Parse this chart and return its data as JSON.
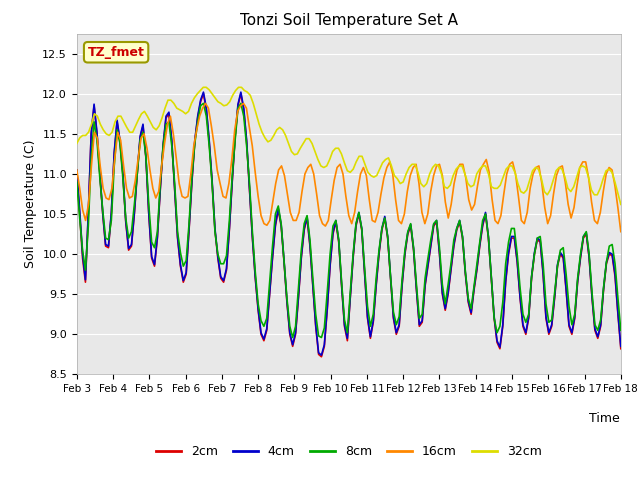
{
  "title": "Tonzi Soil Temperature Set A",
  "xlabel": "Time",
  "ylabel": "Soil Temperature (C)",
  "ylim": [
    8.5,
    12.75
  ],
  "background_color": "#ffffff",
  "plot_bg_color": "#e8e8e8",
  "annotation_text": "TZ_fmet",
  "annotation_color": "#cc0000",
  "annotation_bg": "#ffffcc",
  "annotation_border": "#999900",
  "legend_labels": [
    "2cm",
    "4cm",
    "8cm",
    "16cm",
    "32cm"
  ],
  "line_colors": [
    "#dd0000",
    "#0000cc",
    "#00aa00",
    "#ff8800",
    "#dddd00"
  ],
  "line_widths": [
    1.2,
    1.2,
    1.2,
    1.2,
    1.2
  ],
  "xtick_labels": [
    "Feb 3",
    "Feb 4",
    "Feb 5",
    "Feb 6",
    "Feb 7",
    "Feb 8",
    "Feb 9",
    "Feb 10",
    "Feb 11",
    "Feb 12",
    "Feb 13",
    "Feb 14",
    "Feb 15",
    "Feb 16",
    "Feb 17",
    "Feb 18"
  ],
  "yticks": [
    8.5,
    9.0,
    9.5,
    10.0,
    10.5,
    11.0,
    11.5,
    12.0,
    12.5
  ],
  "title_fontsize": 11,
  "tick_fontsize": 8,
  "label_fontsize": 9,
  "legend_fontsize": 9,
  "total_days": 15,
  "series_2cm": [
    11.0,
    10.5,
    9.95,
    9.65,
    10.5,
    11.5,
    11.85,
    11.5,
    11.0,
    10.5,
    10.1,
    10.08,
    10.5,
    11.25,
    11.65,
    11.4,
    11.0,
    10.4,
    10.05,
    10.1,
    10.5,
    11.0,
    11.45,
    11.6,
    11.2,
    10.5,
    9.95,
    9.85,
    10.2,
    10.8,
    11.35,
    11.7,
    11.75,
    11.4,
    10.8,
    10.2,
    9.85,
    9.65,
    9.75,
    10.3,
    10.9,
    11.4,
    11.7,
    11.9,
    12.0,
    11.8,
    11.4,
    10.9,
    10.3,
    9.95,
    9.7,
    9.65,
    9.8,
    10.3,
    10.9,
    11.45,
    11.85,
    12.0,
    11.8,
    11.4,
    10.8,
    10.2,
    9.7,
    9.3,
    9.0,
    8.92,
    9.05,
    9.5,
    9.95,
    10.35,
    10.55,
    10.35,
    9.9,
    9.4,
    9.0,
    8.85,
    9.0,
    9.45,
    9.95,
    10.3,
    10.45,
    10.1,
    9.6,
    9.1,
    8.75,
    8.72,
    8.85,
    9.3,
    9.85,
    10.25,
    10.4,
    10.15,
    9.6,
    9.1,
    8.92,
    9.45,
    9.95,
    10.35,
    10.5,
    10.3,
    9.75,
    9.2,
    8.95,
    9.15,
    9.6,
    10.0,
    10.3,
    10.45,
    10.2,
    9.7,
    9.2,
    9.0,
    9.1,
    9.6,
    10.0,
    10.25,
    10.35,
    10.05,
    9.55,
    9.1,
    9.15,
    9.6,
    9.85,
    10.1,
    10.35,
    10.4,
    10.0,
    9.5,
    9.3,
    9.5,
    9.8,
    10.1,
    10.3,
    10.4,
    10.2,
    9.75,
    9.4,
    9.25,
    9.55,
    9.8,
    10.1,
    10.35,
    10.5,
    10.2,
    9.7,
    9.2,
    8.9,
    8.82,
    9.1,
    9.65,
    10.0,
    10.2,
    10.2,
    9.9,
    9.45,
    9.1,
    9.0,
    9.2,
    9.7,
    10.0,
    10.18,
    10.15,
    9.75,
    9.2,
    9.0,
    9.1,
    9.45,
    9.85,
    10.0,
    9.95,
    9.55,
    9.1,
    9.0,
    9.2,
    9.65,
    9.95,
    10.2,
    10.25,
    9.95,
    9.45,
    9.05,
    8.95,
    9.1,
    9.55,
    9.88,
    10.0,
    9.98,
    9.72,
    9.25,
    8.82
  ],
  "series_4cm": [
    11.05,
    10.55,
    10.0,
    9.68,
    10.52,
    11.5,
    11.87,
    11.52,
    11.02,
    10.52,
    10.12,
    10.1,
    10.52,
    11.27,
    11.67,
    11.42,
    11.02,
    10.42,
    10.07,
    10.12,
    10.52,
    11.02,
    11.47,
    11.62,
    11.22,
    10.52,
    9.97,
    9.87,
    10.22,
    10.82,
    11.37,
    11.72,
    11.77,
    11.42,
    10.82,
    10.22,
    9.87,
    9.67,
    9.77,
    10.32,
    10.92,
    11.42,
    11.72,
    11.92,
    12.02,
    11.82,
    11.42,
    10.92,
    10.32,
    9.97,
    9.72,
    9.67,
    9.82,
    10.32,
    10.92,
    11.47,
    11.87,
    12.02,
    11.82,
    11.42,
    10.82,
    10.22,
    9.72,
    9.32,
    9.02,
    8.94,
    9.07,
    9.52,
    9.97,
    10.37,
    10.57,
    10.37,
    9.92,
    9.42,
    9.02,
    8.87,
    9.02,
    9.47,
    9.97,
    10.32,
    10.47,
    10.12,
    9.62,
    9.12,
    8.77,
    8.74,
    8.87,
    9.32,
    9.87,
    10.27,
    10.42,
    10.17,
    9.62,
    9.12,
    8.95,
    9.47,
    9.97,
    10.37,
    10.52,
    10.32,
    9.77,
    9.22,
    8.97,
    9.17,
    9.62,
    10.02,
    10.32,
    10.47,
    10.22,
    9.72,
    9.22,
    9.02,
    9.12,
    9.62,
    10.02,
    10.27,
    10.37,
    10.07,
    9.57,
    9.12,
    9.17,
    9.62,
    9.87,
    10.12,
    10.37,
    10.42,
    10.02,
    9.52,
    9.32,
    9.52,
    9.82,
    10.12,
    10.32,
    10.42,
    10.22,
    9.77,
    9.42,
    9.27,
    9.57,
    9.82,
    10.12,
    10.37,
    10.52,
    10.22,
    9.72,
    9.22,
    8.92,
    8.84,
    9.12,
    9.67,
    10.02,
    10.22,
    10.22,
    9.92,
    9.47,
    9.12,
    9.02,
    9.22,
    9.72,
    10.02,
    10.2,
    10.17,
    9.77,
    9.22,
    9.02,
    9.12,
    9.47,
    9.87,
    10.02,
    9.97,
    9.57,
    9.12,
    9.02,
    9.22,
    9.67,
    9.97,
    10.22,
    10.27,
    9.97,
    9.47,
    9.07,
    8.97,
    9.12,
    9.57,
    9.9,
    10.02,
    10.0,
    9.75,
    9.27,
    8.85
  ],
  "series_8cm": [
    10.9,
    10.45,
    10.05,
    9.8,
    10.35,
    11.2,
    11.65,
    11.42,
    10.95,
    10.55,
    10.2,
    10.18,
    10.42,
    11.1,
    11.55,
    11.38,
    10.95,
    10.45,
    10.2,
    10.28,
    10.62,
    11.0,
    11.42,
    11.52,
    11.22,
    10.62,
    10.15,
    10.08,
    10.28,
    10.88,
    11.35,
    11.62,
    11.65,
    11.35,
    10.88,
    10.28,
    10.02,
    9.85,
    9.92,
    10.38,
    10.98,
    11.38,
    11.65,
    11.85,
    11.88,
    11.72,
    11.35,
    10.88,
    10.28,
    10.0,
    9.88,
    9.88,
    9.98,
    10.42,
    10.98,
    11.42,
    11.82,
    11.88,
    11.72,
    11.35,
    10.88,
    10.28,
    9.78,
    9.38,
    9.17,
    9.1,
    9.2,
    9.65,
    10.1,
    10.5,
    10.6,
    10.38,
    9.92,
    9.45,
    9.1,
    8.96,
    9.1,
    9.58,
    10.05,
    10.38,
    10.48,
    10.18,
    9.7,
    9.25,
    8.98,
    8.96,
    9.08,
    9.52,
    10.0,
    10.35,
    10.42,
    10.18,
    9.65,
    9.18,
    9.02,
    9.52,
    10.0,
    10.38,
    10.52,
    10.32,
    9.82,
    9.35,
    9.1,
    9.25,
    9.7,
    10.05,
    10.32,
    10.45,
    10.22,
    9.72,
    9.28,
    9.12,
    9.22,
    9.68,
    10.05,
    10.28,
    10.38,
    10.08,
    9.62,
    9.2,
    9.25,
    9.7,
    9.95,
    10.18,
    10.38,
    10.42,
    10.08,
    9.62,
    9.38,
    9.62,
    9.88,
    10.18,
    10.32,
    10.42,
    10.22,
    9.78,
    9.45,
    9.32,
    9.6,
    9.88,
    10.15,
    10.42,
    10.5,
    10.22,
    9.72,
    9.2,
    9.02,
    9.1,
    9.4,
    9.88,
    10.15,
    10.32,
    10.32,
    10.0,
    9.58,
    9.25,
    9.15,
    9.25,
    9.72,
    10.0,
    10.2,
    10.22,
    9.88,
    9.38,
    9.15,
    9.18,
    9.52,
    9.85,
    10.05,
    10.08,
    9.75,
    9.35,
    9.12,
    9.25,
    9.7,
    10.0,
    10.22,
    10.28,
    10.0,
    9.52,
    9.12,
    9.05,
    9.18,
    9.58,
    9.9,
    10.1,
    10.12,
    9.88,
    9.45,
    9.05
  ],
  "series_16cm": [
    11.05,
    10.82,
    10.55,
    10.42,
    10.62,
    11.1,
    11.52,
    11.45,
    11.1,
    10.82,
    10.7,
    10.68,
    10.82,
    11.2,
    11.52,
    11.42,
    11.1,
    10.82,
    10.7,
    10.72,
    10.92,
    11.2,
    11.45,
    11.5,
    11.32,
    11.05,
    10.82,
    10.7,
    10.78,
    11.1,
    11.38,
    11.62,
    11.72,
    11.5,
    11.2,
    10.88,
    10.72,
    10.7,
    10.72,
    11.0,
    11.35,
    11.55,
    11.72,
    11.82,
    11.88,
    11.82,
    11.6,
    11.35,
    11.05,
    10.88,
    10.72,
    10.7,
    10.88,
    11.18,
    11.55,
    11.78,
    11.85,
    11.88,
    11.82,
    11.58,
    11.35,
    11.02,
    10.72,
    10.48,
    10.38,
    10.36,
    10.42,
    10.65,
    10.88,
    11.05,
    11.1,
    10.98,
    10.75,
    10.52,
    10.42,
    10.42,
    10.52,
    10.78,
    11.0,
    11.08,
    11.12,
    11.0,
    10.75,
    10.48,
    10.38,
    10.35,
    10.42,
    10.68,
    10.92,
    11.08,
    11.12,
    11.0,
    10.72,
    10.48,
    10.38,
    10.52,
    10.78,
    11.0,
    11.08,
    10.98,
    10.68,
    10.42,
    10.4,
    10.52,
    10.75,
    10.95,
    11.08,
    11.15,
    11.0,
    10.68,
    10.42,
    10.38,
    10.5,
    10.78,
    10.98,
    11.08,
    11.12,
    10.88,
    10.52,
    10.38,
    10.5,
    10.78,
    10.98,
    11.1,
    11.12,
    10.98,
    10.65,
    10.45,
    10.62,
    10.88,
    11.05,
    11.12,
    11.12,
    10.95,
    10.68,
    10.55,
    10.62,
    10.85,
    11.05,
    11.12,
    11.18,
    11.02,
    10.68,
    10.42,
    10.38,
    10.48,
    10.75,
    11.0,
    11.12,
    11.15,
    11.0,
    10.72,
    10.42,
    10.38,
    10.52,
    10.82,
    11.0,
    11.08,
    11.1,
    10.88,
    10.58,
    10.38,
    10.48,
    10.75,
    10.98,
    11.08,
    11.1,
    10.9,
    10.62,
    10.45,
    10.58,
    10.85,
    11.08,
    11.15,
    11.15,
    10.95,
    10.65,
    10.42,
    10.38,
    10.52,
    10.78,
    11.0,
    11.08,
    11.05,
    10.85,
    10.58,
    10.28
  ],
  "series_32cm": [
    11.38,
    11.45,
    11.48,
    11.48,
    11.52,
    11.62,
    11.75,
    11.72,
    11.62,
    11.55,
    11.5,
    11.48,
    11.52,
    11.65,
    11.72,
    11.72,
    11.65,
    11.58,
    11.52,
    11.52,
    11.6,
    11.68,
    11.75,
    11.78,
    11.72,
    11.65,
    11.58,
    11.55,
    11.6,
    11.7,
    11.82,
    11.92,
    11.92,
    11.88,
    11.82,
    11.8,
    11.78,
    11.75,
    11.78,
    11.88,
    11.95,
    12.0,
    12.04,
    12.08,
    12.08,
    12.05,
    12.0,
    11.95,
    11.9,
    11.88,
    11.85,
    11.86,
    11.9,
    11.98,
    12.04,
    12.08,
    12.08,
    12.04,
    12.02,
    11.98,
    11.88,
    11.75,
    11.62,
    11.52,
    11.45,
    11.4,
    11.42,
    11.48,
    11.55,
    11.58,
    11.55,
    11.48,
    11.38,
    11.28,
    11.24,
    11.25,
    11.32,
    11.38,
    11.44,
    11.44,
    11.38,
    11.28,
    11.18,
    11.1,
    11.08,
    11.1,
    11.18,
    11.28,
    11.32,
    11.32,
    11.25,
    11.14,
    11.04,
    11.02,
    11.06,
    11.15,
    11.22,
    11.22,
    11.12,
    11.02,
    10.98,
    10.96,
    10.98,
    11.06,
    11.14,
    11.18,
    11.2,
    11.1,
    10.98,
    10.94,
    10.88,
    10.9,
    11.0,
    11.08,
    11.12,
    11.12,
    11.02,
    10.88,
    10.84,
    10.88,
    11.0,
    11.08,
    11.12,
    11.1,
    11.0,
    10.84,
    10.82,
    10.86,
    10.98,
    11.06,
    11.1,
    11.1,
    11.0,
    10.88,
    10.84,
    10.86,
    11.0,
    11.06,
    11.1,
    11.1,
    11.0,
    10.84,
    10.82,
    10.82,
    10.86,
    10.96,
    11.06,
    11.1,
    11.1,
    11.02,
    10.88,
    10.78,
    10.76,
    10.8,
    10.92,
    11.04,
    11.08,
    11.06,
    10.94,
    10.78,
    10.74,
    10.8,
    10.92,
    11.04,
    11.08,
    11.06,
    10.96,
    10.82,
    10.78,
    10.84,
    10.96,
    11.08,
    11.1,
    11.08,
    10.96,
    10.8,
    10.74,
    10.74,
    10.82,
    10.94,
    11.04,
    11.06,
    11.02,
    10.9,
    10.76,
    10.62
  ]
}
